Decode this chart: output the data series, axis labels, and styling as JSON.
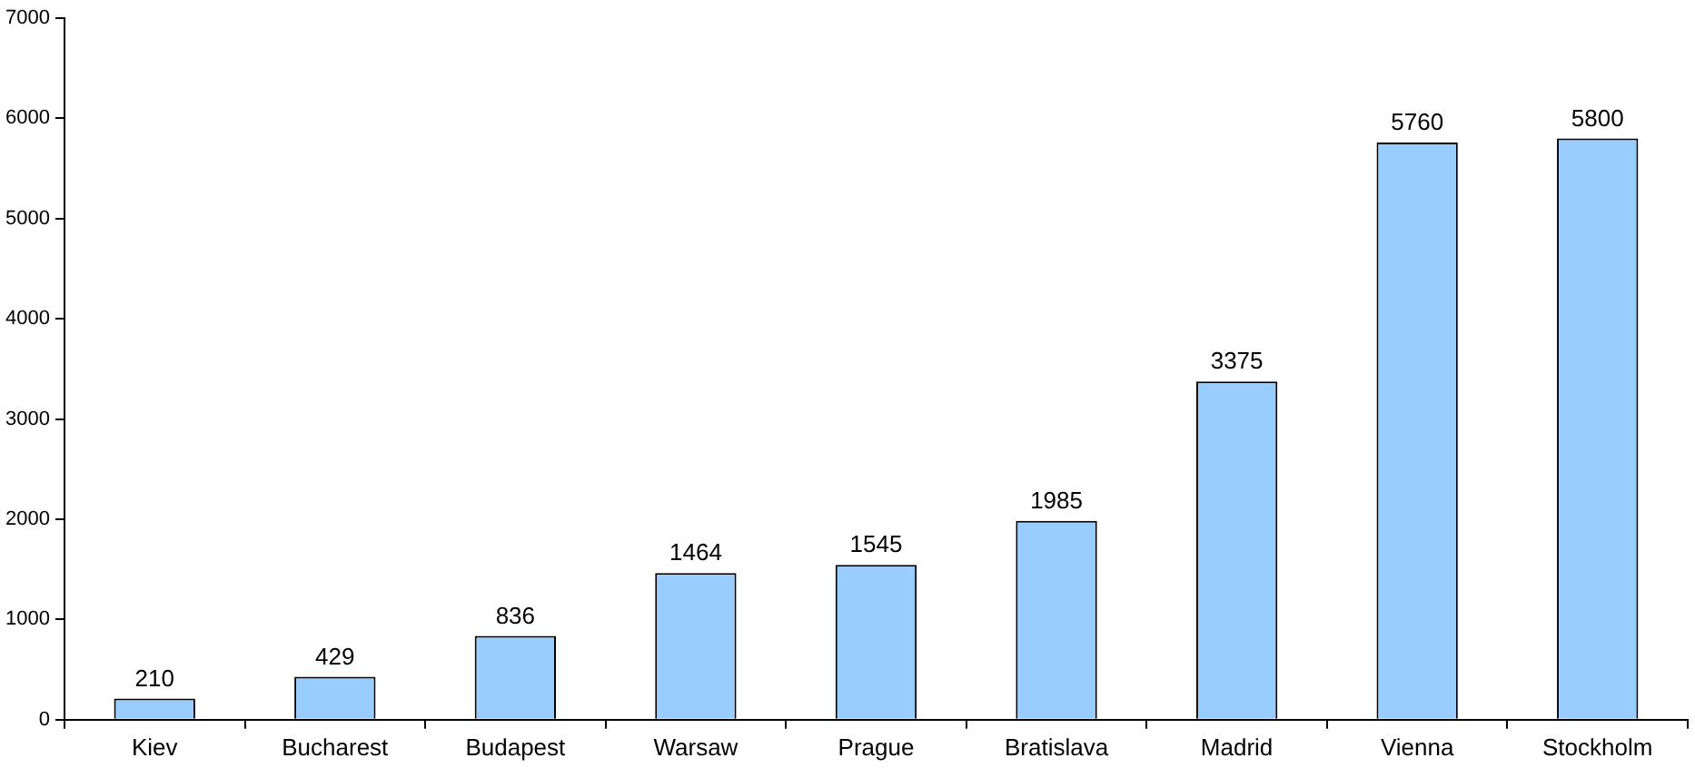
{
  "chart_data": {
    "type": "bar",
    "categories": [
      "Kiev",
      "Bucharest",
      "Budapest",
      "Warsaw",
      "Prague",
      "Bratislava",
      "Madrid",
      "Vienna",
      "Stockholm"
    ],
    "values": [
      210,
      429,
      836,
      1464,
      1545,
      1985,
      3375,
      5760,
      5800
    ],
    "color": "#99ccff",
    "ylim": [
      0,
      7000
    ],
    "yticks": [
      0,
      1000,
      2000,
      3000,
      4000,
      5000,
      6000,
      7000
    ],
    "grid": false,
    "legend": false,
    "data_labels": true
  }
}
